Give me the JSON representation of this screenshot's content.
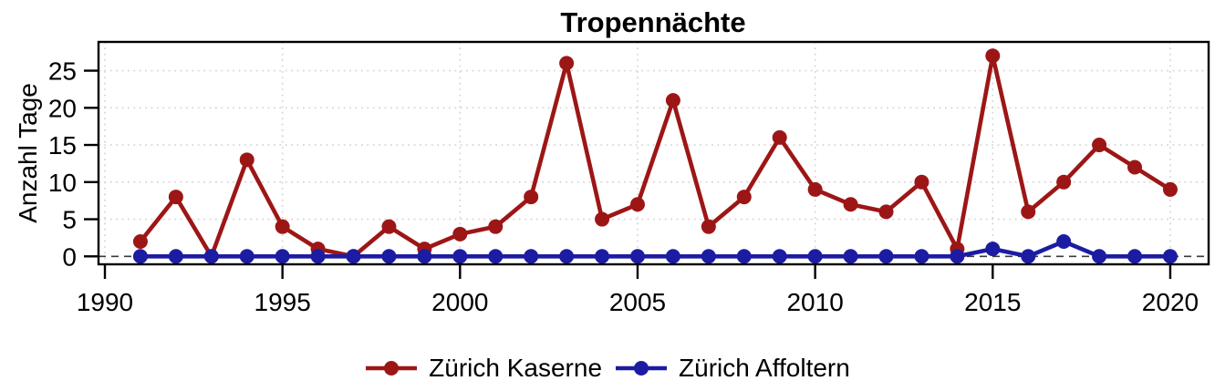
{
  "chart_data": {
    "type": "line",
    "title": "Tropennächte",
    "xlabel": "",
    "ylabel": "Anzahl Tage",
    "x": [
      1991,
      1992,
      1993,
      1994,
      1995,
      1996,
      1997,
      1998,
      1999,
      2000,
      2001,
      2002,
      2003,
      2004,
      2005,
      2006,
      2007,
      2008,
      2009,
      2010,
      2011,
      2012,
      2013,
      2014,
      2015,
      2016,
      2017,
      2018,
      2019,
      2020
    ],
    "series": [
      {
        "name": "Zürich Kaserne",
        "color": "#9d1616",
        "values": [
          2,
          8,
          0,
          13,
          4,
          1,
          0,
          4,
          1,
          3,
          4,
          8,
          26,
          5,
          7,
          21,
          4,
          8,
          16,
          9,
          7,
          6,
          10,
          1,
          27,
          6,
          10,
          15,
          12,
          9
        ]
      },
      {
        "name": "Zürich Affoltern",
        "color": "#1c1ca3",
        "values": [
          0,
          0,
          0,
          0,
          0,
          0,
          0,
          0,
          0,
          0,
          0,
          0,
          0,
          0,
          0,
          0,
          0,
          0,
          0,
          0,
          0,
          0,
          0,
          0,
          1,
          0,
          2,
          0,
          0,
          0
        ]
      }
    ],
    "x_ticks": [
      1990,
      1995,
      2000,
      2005,
      2010,
      2015,
      2020
    ],
    "y_ticks": [
      0,
      5,
      10,
      15,
      20,
      25
    ],
    "xlim": [
      1989.82,
      2021.08
    ],
    "ylim": [
      -1.07,
      28.87
    ],
    "grid": true,
    "grid_color": "#d4d4d4",
    "zero_line": {
      "style": "dashed",
      "color": "#3a3a3a"
    },
    "axis_color": "#000000",
    "background": "#ffffff",
    "legend_position": "bottom"
  }
}
